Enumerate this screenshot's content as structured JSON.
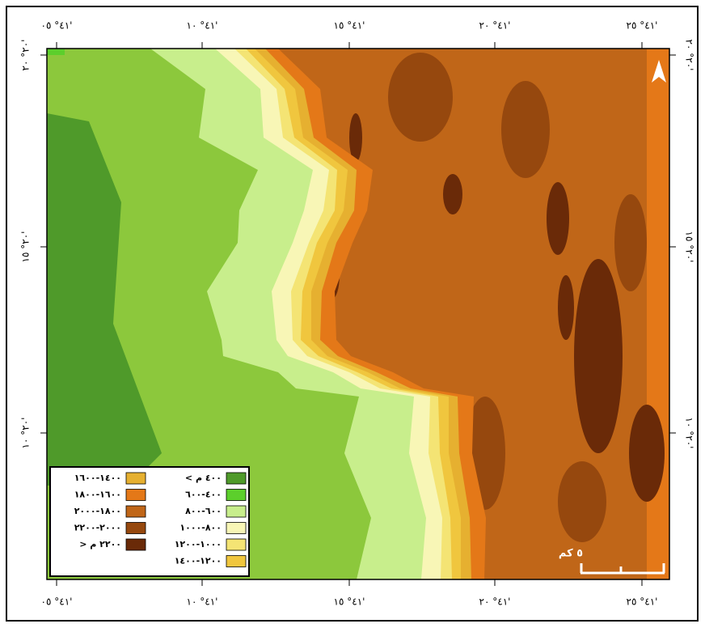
{
  "map": {
    "x_labels_top": [
      "٤١° ٠٥'",
      "٤١° ١٠'",
      "٤١° ١٥'",
      "٤١° ٢٠'",
      "٤١° ٢٥'"
    ],
    "x_labels_bottom": [
      "٤١° ٠٥'",
      "٤١° ١٠'",
      "٤١° ١٥'",
      "٤١° ٢٠'",
      "٤١° ٢٥'"
    ],
    "y_labels_left": [
      "٢٠° ٢٠'",
      "٢٠° ١٥'",
      "٢٠° ١٠'"
    ],
    "y_labels_right": [
      "٢٠° ٢٠'",
      "٢٠° ١٥'",
      "٢٠° ١٠'"
    ],
    "legend": [
      {
        "label": "< ٤٠٠ م",
        "color": "#4f9a2a"
      },
      {
        "label": "٤٠٠-٦٠٠",
        "color": "#5ccf2c"
      },
      {
        "label": "٦٠٠-٨٠٠",
        "color": "#c8ee8c"
      },
      {
        "label": "٨٠٠-١٠٠٠",
        "color": "#f8f6b6"
      },
      {
        "label": "١٠٠٠-١٢٠٠",
        "color": "#f4e474"
      },
      {
        "label": "١٢٠٠-١٤٠٠",
        "color": "#f0c63e"
      },
      {
        "label": "١٤٠٠-١٦٠٠",
        "color": "#e6b030"
      },
      {
        "label": "١٦٠٠-١٨٠٠",
        "color": "#e47818"
      },
      {
        "label": "١٨٠٠-٢٠٠٠",
        "color": "#c06618"
      },
      {
        "label": "٢٠٠٠-٢٢٠٠",
        "color": "#96480e"
      },
      {
        "label": "> ٢٢٠٠ م",
        "color": "#6a2a08"
      }
    ],
    "scale": "٥ كم"
  }
}
